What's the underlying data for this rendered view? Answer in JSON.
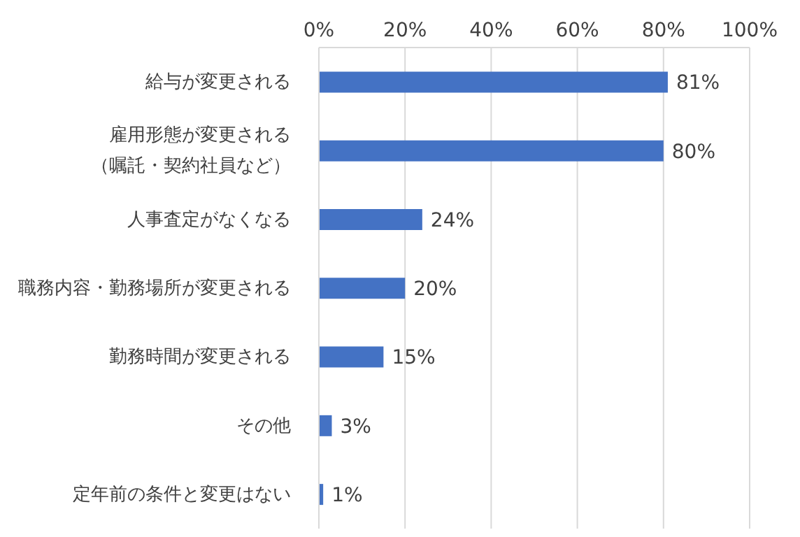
{
  "chart_data": {
    "type": "bar",
    "orientation": "horizontal",
    "categories": [
      "給与が変更される",
      "雇用形態が変更される（嘱託・契約社員など）",
      "人事査定がなくなる",
      "職務内容・勤務場所が変更される",
      "勤務時間が変更される",
      "その他",
      "定年前の条件と変更はない"
    ],
    "values": [
      81,
      80,
      24,
      20,
      15,
      3,
      1
    ],
    "value_labels": [
      "81%",
      "80%",
      "24%",
      "20%",
      "15%",
      "3%",
      "1%"
    ],
    "color": "#4472c4",
    "xlim": [
      0,
      100
    ],
    "xticks": [
      {
        "value": 0,
        "label": "0%"
      },
      {
        "value": 20,
        "label": "20%"
      },
      {
        "value": 40,
        "label": "40%"
      },
      {
        "value": 60,
        "label": "60%"
      },
      {
        "value": 80,
        "label": "80%"
      },
      {
        "value": 100,
        "label": "100%"
      }
    ],
    "grid": "x"
  }
}
